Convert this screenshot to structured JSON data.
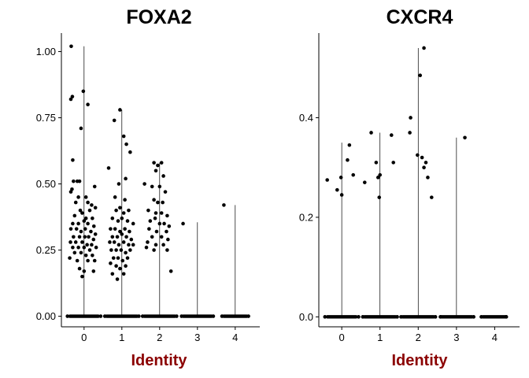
{
  "chart_data": [
    {
      "type": "scatter",
      "subtype": "violin-jitter",
      "title": "FOXA2",
      "xlabel": "Identity",
      "ylabel": "",
      "categories": [
        "0",
        "1",
        "2",
        "3",
        "4"
      ],
      "ylim": [
        -0.04,
        1.07
      ],
      "yticks": [
        0.0,
        0.25,
        0.5,
        0.75,
        1.0
      ],
      "ytick_labels": [
        "0.00",
        "0.25",
        "0.50",
        "0.75",
        "1.00"
      ],
      "grid": false,
      "legend": "none",
      "violin_max": [
        1.02,
        0.78,
        0.58,
        0.355,
        0.42
      ],
      "zero_band": [
        [
          -0.42,
          0.42
        ],
        [
          -0.45,
          0.45
        ],
        [
          -0.45,
          0.45
        ],
        [
          -0.42,
          0.42
        ],
        [
          -0.35,
          0.35
        ]
      ],
      "points": [
        [
          -0.34,
          1.02
        ],
        [
          -0.35,
          0.82
        ],
        [
          -0.31,
          0.83
        ],
        [
          -0.02,
          0.85
        ],
        [
          0.1,
          0.8
        ],
        [
          -0.08,
          0.71
        ],
        [
          -0.3,
          0.59
        ],
        [
          -0.32,
          0.48
        ],
        [
          -0.35,
          0.47
        ],
        [
          -0.28,
          0.51
        ],
        [
          -0.18,
          0.51
        ],
        [
          -0.12,
          0.51
        ],
        [
          0.28,
          0.49
        ],
        [
          -0.15,
          0.45
        ],
        [
          0.05,
          0.45
        ],
        [
          -0.22,
          0.43
        ],
        [
          0.1,
          0.43
        ],
        [
          0.2,
          0.42
        ],
        [
          -0.1,
          0.4
        ],
        [
          0.15,
          0.4
        ],
        [
          0.3,
          0.41
        ],
        [
          -0.25,
          0.38
        ],
        [
          -0.05,
          0.39
        ],
        [
          0.05,
          0.37
        ],
        [
          0.22,
          0.37
        ],
        [
          -0.3,
          0.35
        ],
        [
          -0.15,
          0.35
        ],
        [
          0.0,
          0.36
        ],
        [
          0.1,
          0.35
        ],
        [
          0.26,
          0.34
        ],
        [
          -0.35,
          0.33
        ],
        [
          -0.2,
          0.33
        ],
        [
          -0.08,
          0.32
        ],
        [
          0.03,
          0.33
        ],
        [
          0.18,
          0.32
        ],
        [
          0.3,
          0.31
        ],
        [
          -0.28,
          0.3
        ],
        [
          -0.12,
          0.3
        ],
        [
          0.02,
          0.3
        ],
        [
          0.12,
          0.3
        ],
        [
          0.25,
          0.29
        ],
        [
          -0.36,
          0.28
        ],
        [
          -0.22,
          0.28
        ],
        [
          -0.05,
          0.28
        ],
        [
          0.08,
          0.27
        ],
        [
          0.2,
          0.27
        ],
        [
          -0.3,
          0.26
        ],
        [
          -0.15,
          0.26
        ],
        [
          0.0,
          0.26
        ],
        [
          0.15,
          0.25
        ],
        [
          0.32,
          0.26
        ],
        [
          -0.25,
          0.24
        ],
        [
          -0.08,
          0.24
        ],
        [
          0.05,
          0.23
        ],
        [
          0.22,
          0.23
        ],
        [
          -0.38,
          0.22
        ],
        [
          -0.18,
          0.21
        ],
        [
          0.1,
          0.21
        ],
        [
          0.28,
          0.21
        ],
        [
          -0.12,
          0.18
        ],
        [
          0.0,
          0.17
        ],
        [
          0.25,
          0.17
        ],
        [
          -0.05,
          0.15
        ],
        [
          0.65,
          0.56
        ],
        [
          0.8,
          0.74
        ],
        [
          0.95,
          0.78
        ],
        [
          1.05,
          0.68
        ],
        [
          1.12,
          0.65
        ],
        [
          1.22,
          0.62
        ],
        [
          0.92,
          0.5
        ],
        [
          1.1,
          0.52
        ],
        [
          0.82,
          0.45
        ],
        [
          1.08,
          0.44
        ],
        [
          0.85,
          0.4
        ],
        [
          0.95,
          0.41
        ],
        [
          1.05,
          0.39
        ],
        [
          1.18,
          0.4
        ],
        [
          0.75,
          0.37
        ],
        [
          0.9,
          0.36
        ],
        [
          1.0,
          0.37
        ],
        [
          1.15,
          0.36
        ],
        [
          1.3,
          0.35
        ],
        [
          0.7,
          0.33
        ],
        [
          0.82,
          0.33
        ],
        [
          0.95,
          0.32
        ],
        [
          1.08,
          0.33
        ],
        [
          1.2,
          0.32
        ],
        [
          0.75,
          0.3
        ],
        [
          0.88,
          0.3
        ],
        [
          1.0,
          0.31
        ],
        [
          1.12,
          0.3
        ],
        [
          1.25,
          0.29
        ],
        [
          0.68,
          0.28
        ],
        [
          0.8,
          0.28
        ],
        [
          0.92,
          0.27
        ],
        [
          1.05,
          0.28
        ],
        [
          1.18,
          0.27
        ],
        [
          1.3,
          0.27
        ],
        [
          0.72,
          0.25
        ],
        [
          0.85,
          0.25
        ],
        [
          0.98,
          0.25
        ],
        [
          1.1,
          0.24
        ],
        [
          1.22,
          0.25
        ],
        [
          0.78,
          0.22
        ],
        [
          0.9,
          0.22
        ],
        [
          1.02,
          0.21
        ],
        [
          1.15,
          0.22
        ],
        [
          0.7,
          0.2
        ],
        [
          0.85,
          0.19
        ],
        [
          0.95,
          0.18
        ],
        [
          1.1,
          0.19
        ],
        [
          0.75,
          0.16
        ],
        [
          0.88,
          0.14
        ],
        [
          1.05,
          0.16
        ],
        [
          1.6,
          0.5
        ],
        [
          1.85,
          0.58
        ],
        [
          1.95,
          0.57
        ],
        [
          2.05,
          0.58
        ],
        [
          1.9,
          0.55
        ],
        [
          2.1,
          0.53
        ],
        [
          1.8,
          0.49
        ],
        [
          2.0,
          0.49
        ],
        [
          2.15,
          0.47
        ],
        [
          1.85,
          0.44
        ],
        [
          1.95,
          0.43
        ],
        [
          2.08,
          0.43
        ],
        [
          1.7,
          0.4
        ],
        [
          1.9,
          0.39
        ],
        [
          2.05,
          0.39
        ],
        [
          2.2,
          0.38
        ],
        [
          1.75,
          0.36
        ],
        [
          1.88,
          0.37
        ],
        [
          2.0,
          0.35
        ],
        [
          2.12,
          0.35
        ],
        [
          2.25,
          0.34
        ],
        [
          1.72,
          0.33
        ],
        [
          1.92,
          0.32
        ],
        [
          2.18,
          0.32
        ],
        [
          1.8,
          0.3
        ],
        [
          2.05,
          0.3
        ],
        [
          2.22,
          0.29
        ],
        [
          1.68,
          0.28
        ],
        [
          1.9,
          0.27
        ],
        [
          2.1,
          0.27
        ],
        [
          1.65,
          0.26
        ],
        [
          1.85,
          0.25
        ],
        [
          2.2,
          0.25
        ],
        [
          2.3,
          0.17
        ],
        [
          2.62,
          0.35
        ],
        [
          3.7,
          0.42
        ]
      ],
      "zero_points": [
        [
          -0.44,
          0.0
        ],
        [
          0.44,
          0.0
        ],
        [
          0.55,
          0.0
        ],
        [
          1.45,
          0.0
        ],
        [
          1.55,
          0.0
        ],
        [
          2.45,
          0.0
        ],
        [
          2.58,
          0.0
        ],
        [
          3.42,
          0.0
        ],
        [
          3.65,
          0.0
        ],
        [
          4.35,
          0.0
        ]
      ]
    },
    {
      "type": "scatter",
      "subtype": "violin-jitter",
      "title": "CXCR4",
      "xlabel": "Identity",
      "ylabel": "",
      "categories": [
        "0",
        "1",
        "2",
        "3",
        "4"
      ],
      "ylim": [
        -0.02,
        0.57
      ],
      "yticks": [
        0.0,
        0.2,
        0.4
      ],
      "ytick_labels": [
        "0.0",
        "0.2",
        "0.4"
      ],
      "grid": false,
      "legend": "none",
      "violin_max": [
        0.35,
        0.37,
        0.54,
        0.36,
        0.0
      ],
      "zero_band": [
        [
          -0.42,
          0.42
        ],
        [
          -0.45,
          0.45
        ],
        [
          -0.45,
          0.45
        ],
        [
          -0.45,
          0.45
        ],
        [
          -0.35,
          0.35
        ]
      ],
      "points": [
        [
          -0.38,
          0.275
        ],
        [
          -0.12,
          0.255
        ],
        [
          -0.02,
          0.28
        ],
        [
          0.0,
          0.245
        ],
        [
          0.15,
          0.315
        ],
        [
          0.2,
          0.345
        ],
        [
          0.3,
          0.285
        ],
        [
          0.6,
          0.27
        ],
        [
          0.77,
          0.37
        ],
        [
          0.9,
          0.31
        ],
        [
          0.95,
          0.28
        ],
        [
          0.98,
          0.24
        ],
        [
          1.0,
          0.285
        ],
        [
          1.3,
          0.365
        ],
        [
          1.35,
          0.31
        ],
        [
          1.8,
          0.4
        ],
        [
          1.78,
          0.37
        ],
        [
          1.98,
          0.325
        ],
        [
          2.05,
          0.485
        ],
        [
          2.15,
          0.54
        ],
        [
          2.15,
          0.3
        ],
        [
          2.2,
          0.31
        ],
        [
          2.25,
          0.28
        ],
        [
          2.35,
          0.24
        ],
        [
          3.22,
          0.36
        ],
        [
          2.1,
          0.32
        ]
      ],
      "zero_points": [
        [
          -0.44,
          0.0
        ],
        [
          0.44,
          0.0
        ],
        [
          0.55,
          0.0
        ],
        [
          1.45,
          0.0
        ],
        [
          1.55,
          0.0
        ],
        [
          2.45,
          0.0
        ],
        [
          2.58,
          0.0
        ],
        [
          3.45,
          0.0
        ],
        [
          3.65,
          0.0
        ],
        [
          4.3,
          0.0
        ]
      ]
    }
  ]
}
